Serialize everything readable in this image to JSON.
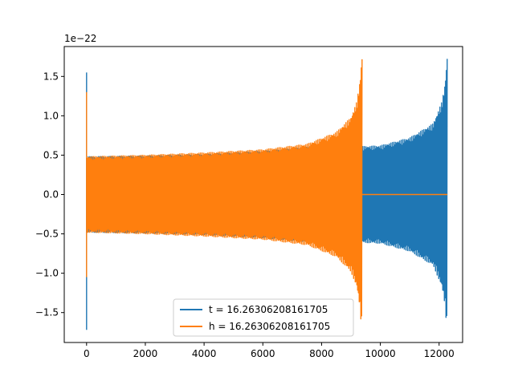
{
  "chart_data": {
    "type": "line",
    "title": "",
    "xlabel": "",
    "ylabel": "",
    "offset_text": "1e−22",
    "xlim": [
      -760,
      12800
    ],
    "ylim": [
      -1.88,
      1.88
    ],
    "x_ticks": [
      0,
      2000,
      4000,
      6000,
      8000,
      10000,
      12000
    ],
    "x_tick_labels": [
      "0",
      "2000",
      "4000",
      "6000",
      "8000",
      "10000",
      "12000"
    ],
    "y_ticks": [
      -1.5,
      -1.0,
      -0.5,
      0.0,
      0.5,
      1.0,
      1.5
    ],
    "y_tick_labels": [
      "−1.5",
      "−1.0",
      "−0.5",
      "0.0",
      "0.5",
      "1.0",
      "1.5"
    ],
    "grid": false,
    "legend_position": "lower center",
    "series": [
      {
        "name": "t = 16.26306208161705",
        "color": "#1f77b4",
        "x_range": [
          0,
          12280
        ],
        "initial_spike": {
          "x": 0,
          "max": 1.55,
          "min": -1.72
        },
        "envelope_x": [
          0,
          2000,
          4000,
          6000,
          8000,
          9400,
          10000,
          11000,
          11800,
          12100,
          12200,
          12280
        ],
        "envelope_amp": [
          0.48,
          0.49,
          0.51,
          0.55,
          0.62,
          0.61,
          0.62,
          0.72,
          0.9,
          1.18,
          1.4,
          1.78
        ],
        "oscillating": true
      },
      {
        "name": "h = 16.26306208161705",
        "color": "#ff7f0e",
        "x_range": [
          0,
          12280
        ],
        "initial_spike": {
          "x": 0,
          "max": 1.3,
          "min": -1.05
        },
        "envelope_x": [
          0,
          2000,
          4000,
          6000,
          7500,
          8500,
          9000,
          9200,
          9300,
          9380
        ],
        "envelope_amp": [
          0.48,
          0.5,
          0.53,
          0.57,
          0.64,
          0.79,
          0.98,
          1.18,
          1.42,
          1.78
        ],
        "merger_x": 9380,
        "post_merger_value": 0.0,
        "oscillating": true
      }
    ]
  }
}
